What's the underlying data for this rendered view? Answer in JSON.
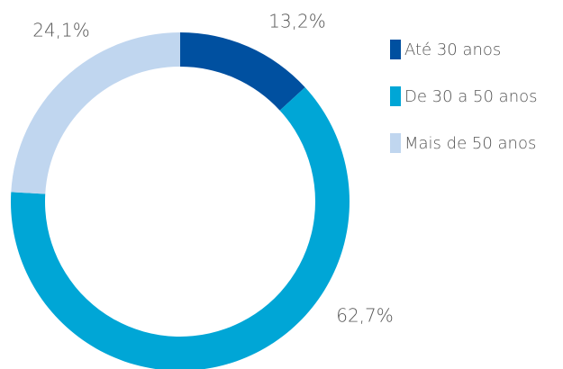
{
  "chart_data": {
    "type": "donut",
    "categories": [
      "Até 30 anos",
      "De 30 a 50 anos",
      "Mais de 50 anos"
    ],
    "values": [
      13.2,
      62.7,
      24.1
    ],
    "value_labels": [
      "13,2%",
      "62,7%",
      "24,1%"
    ],
    "colors": [
      "#0050a0",
      "#00a6d6",
      "#c0d6ef"
    ],
    "legend": "right"
  }
}
